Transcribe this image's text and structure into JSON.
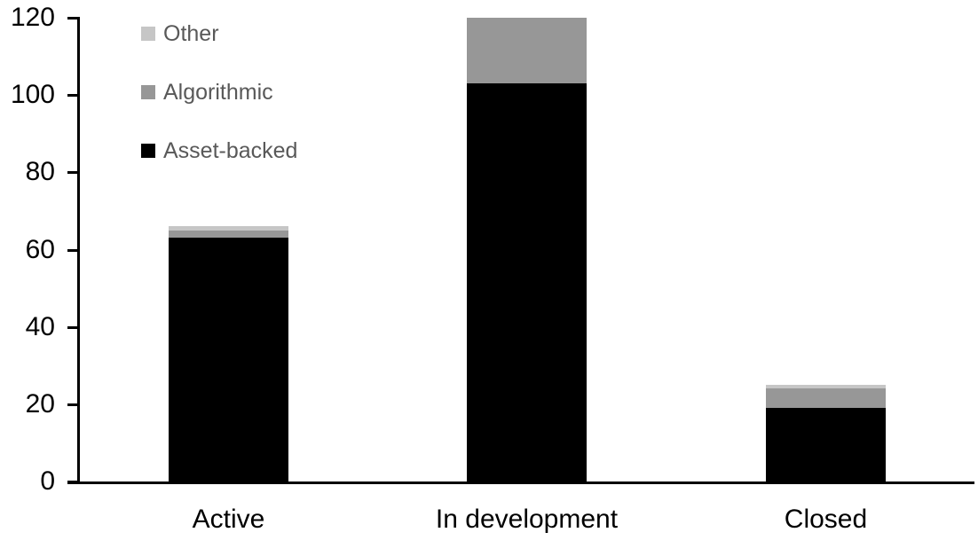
{
  "chart_data": {
    "type": "bar",
    "variant": "stacked",
    "title": "",
    "xlabel": "",
    "ylabel": "",
    "categories": [
      "Active",
      "In development",
      "Closed"
    ],
    "series": [
      {
        "name": "Asset-backed",
        "color": "#000000",
        "values": [
          63,
          103,
          19
        ]
      },
      {
        "name": "Algorithmic",
        "color": "#979797",
        "values": [
          2,
          17,
          5
        ]
      },
      {
        "name": "Other",
        "color": "#C6C6C6",
        "values": [
          1,
          0,
          1
        ]
      }
    ],
    "stack_totals": [
      66,
      120,
      25
    ],
    "yticks": [
      0,
      20,
      40,
      60,
      80,
      100,
      120
    ],
    "ylim": [
      0,
      120
    ],
    "grid": false,
    "legend": {
      "position": "top-left",
      "order_top_to_bottom": [
        "Other",
        "Algorithmic",
        "Asset-backed"
      ],
      "text_color": "#595959"
    },
    "axis_color": "#000000",
    "tick_label_color": "#000000",
    "background_color": "#FFFFFF"
  }
}
